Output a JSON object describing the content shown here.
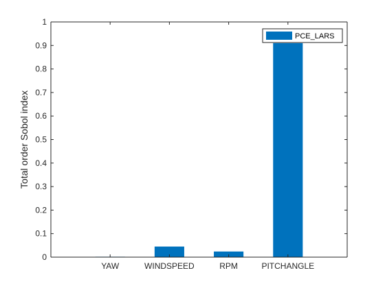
{
  "chart_data": {
    "type": "bar",
    "categories": [
      "YAW",
      "WINDSPEED",
      "RPM",
      "PITCHANGLE"
    ],
    "series": [
      {
        "name": "PCE_LARS",
        "values": [
          0.001,
          0.045,
          0.024,
          0.91
        ]
      }
    ],
    "title": "",
    "xlabel": "",
    "ylabel": "Total order Sobol index",
    "ylim": [
      0,
      1
    ],
    "yticks": [
      0,
      0.1,
      0.2,
      0.3,
      0.4,
      0.5,
      0.6,
      0.7,
      0.8,
      0.9,
      1
    ],
    "ytick_labels": [
      "0",
      "0.1",
      "0.2",
      "0.3",
      "0.4",
      "0.5",
      "0.6",
      "0.7",
      "0.8",
      "0.9",
      "1"
    ],
    "grid": false,
    "legend_position": "top-right",
    "bar_color": "#0072BD"
  }
}
